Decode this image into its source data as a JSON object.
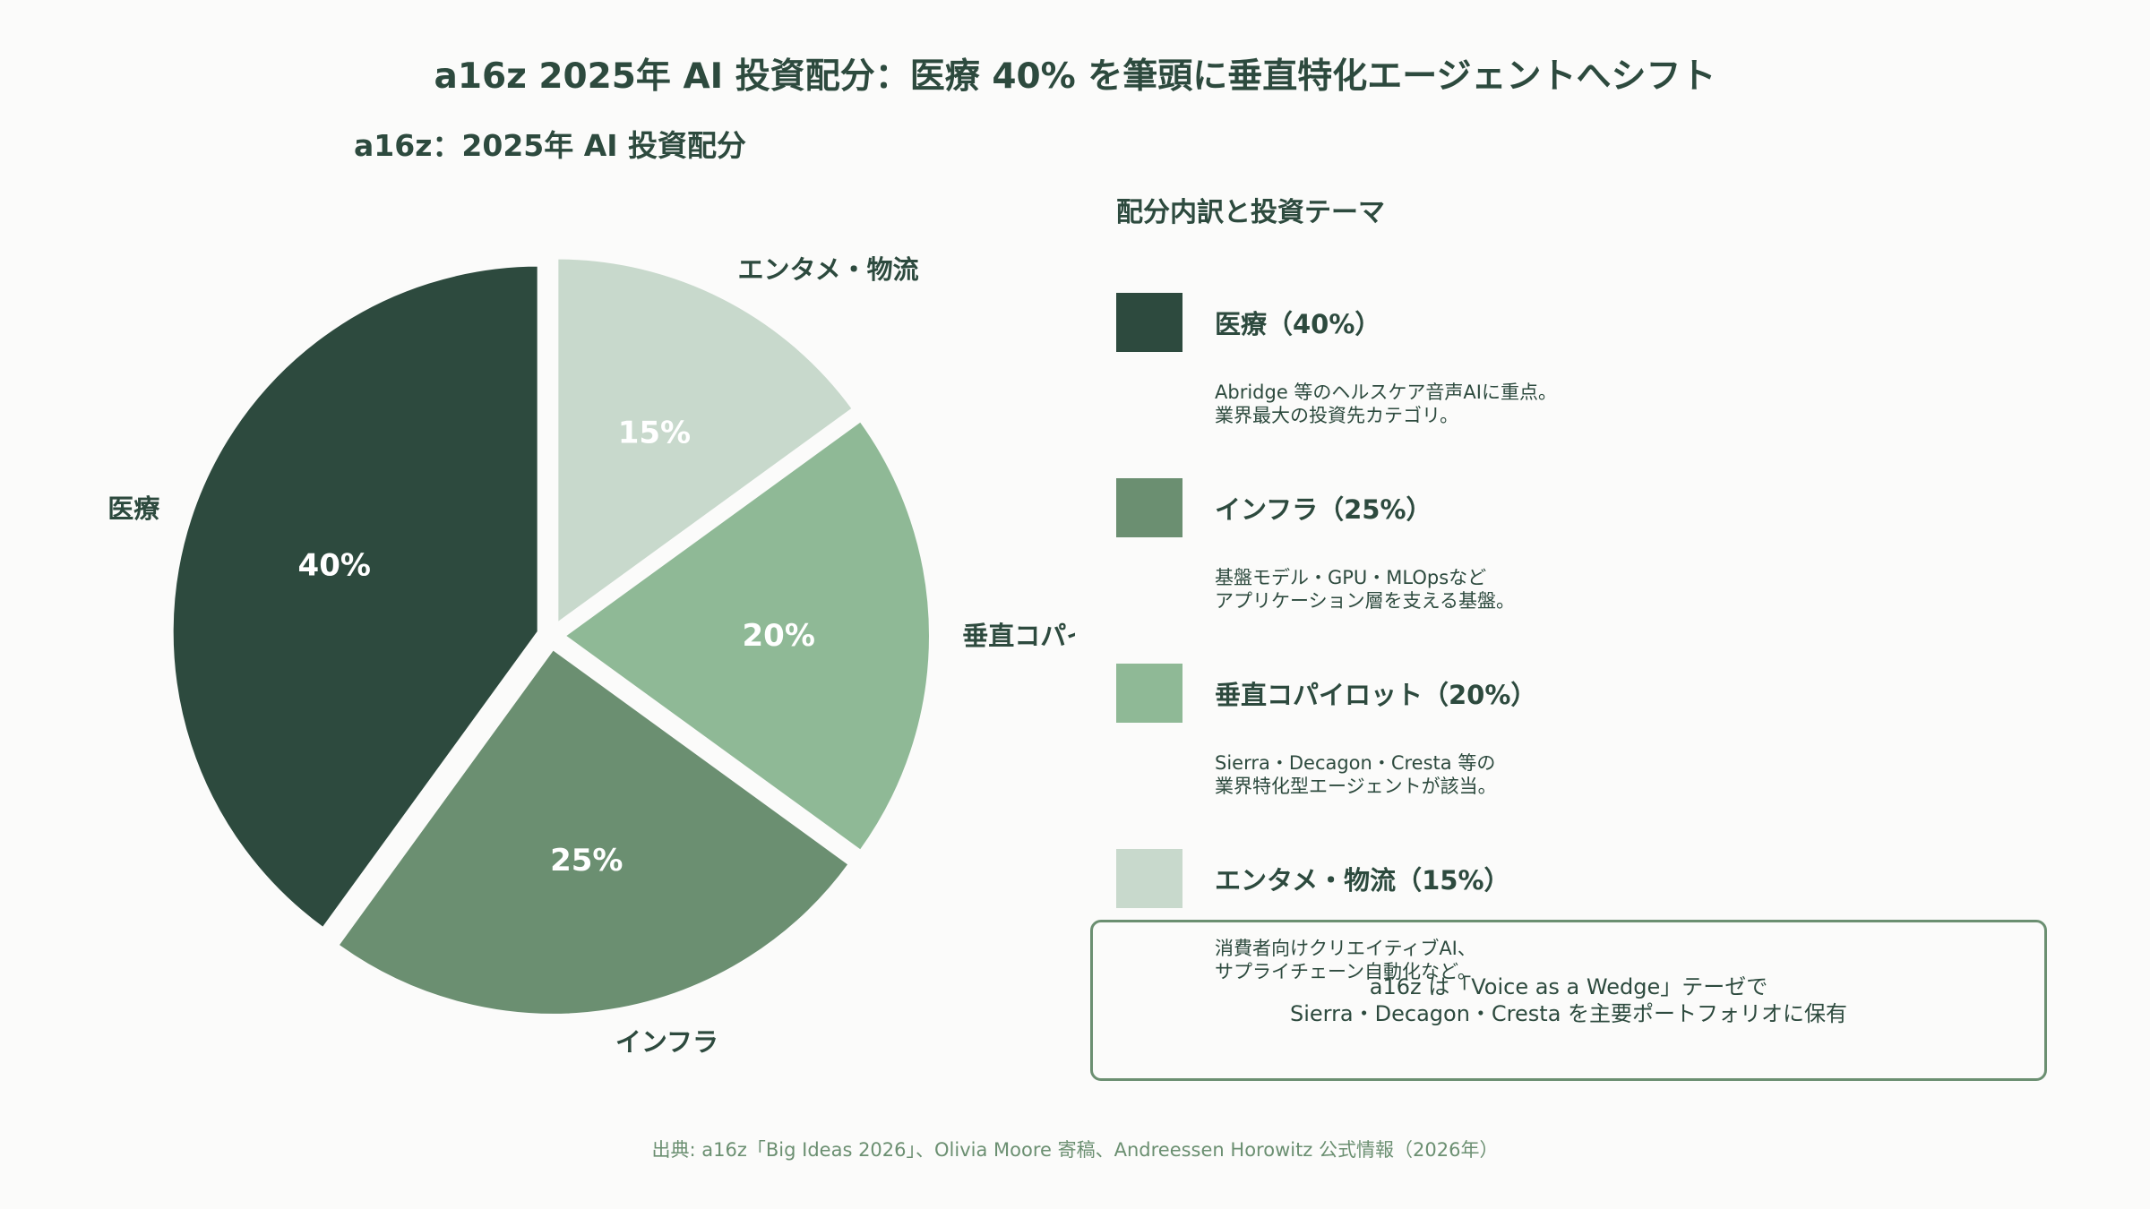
{
  "title": "a16z 2025年 AI 投資配分：医療 40% を筆頭に垂直特化エージェントへシフト",
  "chart_data": {
    "type": "pie",
    "title": "a16z：2025年 AI 投資配分",
    "unit": "%",
    "slices": [
      {
        "label": "エンタメ・物流",
        "value": 15,
        "value_label": "15%",
        "color": "#c8d9cc",
        "text_color": "#ffffff"
      },
      {
        "label": "垂直コパイロット",
        "value": 20,
        "value_label": "20%",
        "color": "#8fb996",
        "text_color": "#ffffff"
      },
      {
        "label": "インフラ",
        "value": 25,
        "value_label": "25%",
        "color": "#6b8f71",
        "text_color": "#ffffff"
      },
      {
        "label": "医療",
        "value": 40,
        "value_label": "40%",
        "color": "#2d4a3e",
        "text_color": "#ffffff"
      }
    ]
  },
  "legend": {
    "heading": "配分内訳と投資テーマ",
    "items": [
      {
        "label": "医療（40%）",
        "color": "#2d4a3e",
        "desc": "Abridge 等のヘルスケア音声AIに重点。\n業界最大の投資先カテゴリ。"
      },
      {
        "label": "インフラ（25%）",
        "color": "#6b8f71",
        "desc": "基盤モデル・GPU・MLOpsなど\nアプリケーション層を支える基盤。"
      },
      {
        "label": "垂直コパイロット（20%）",
        "color": "#8fb996",
        "desc": "Sierra・Decagon・Cresta 等の\n業界特化型エージェントが該当。"
      },
      {
        "label": "エンタメ・物流（15%）",
        "color": "#c8d9cc",
        "desc": "消費者向けクリエイティブAI、\nサプライチェーン自動化など。"
      }
    ]
  },
  "callout": {
    "text": "a16z は「Voice as a Wedge」テーゼで\nSierra・Decagon・Cresta を主要ポートフォリオに保有"
  },
  "source": "出典: a16z「Big Ideas 2026」、Olivia Moore 寄稿、Andreessen Horowitz 公式情報（2026年）"
}
